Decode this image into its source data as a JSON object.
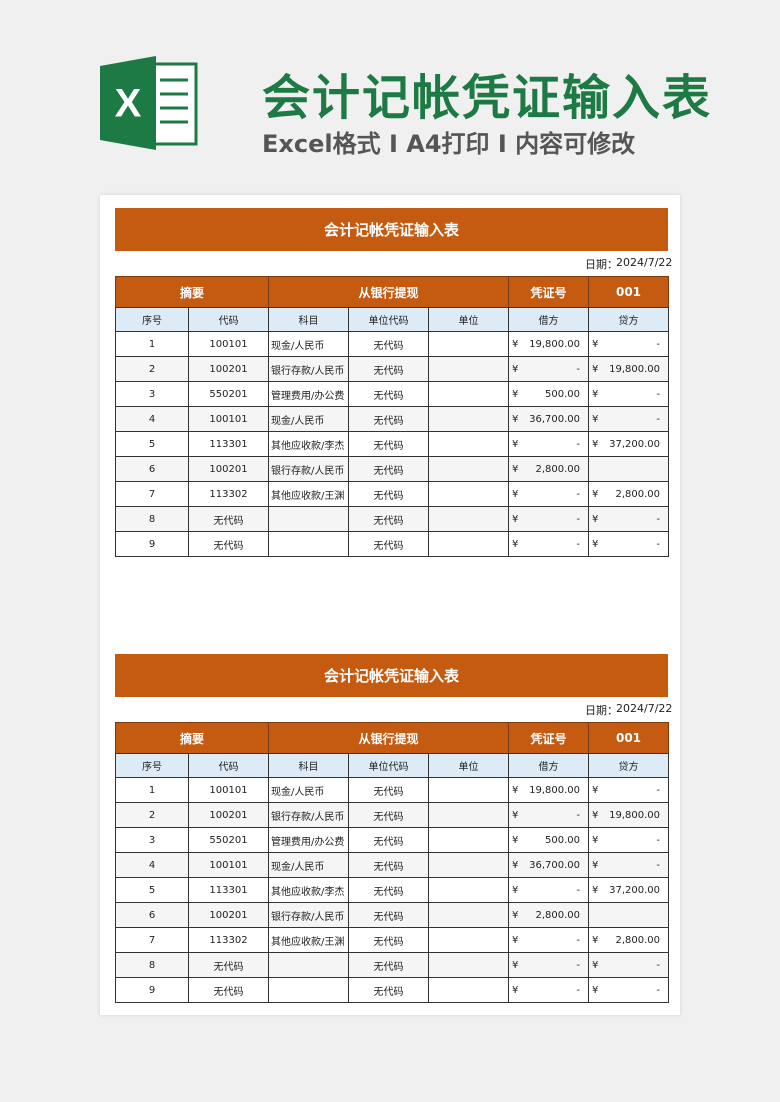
{
  "header": {
    "icon": "X",
    "title": "会计记帐凭证输入表",
    "subtitle": "Excel格式 I A4打印 I 内容可修改"
  },
  "sheets": [
    {
      "title": "会计记帐凭证输入表",
      "date_label": "日期：",
      "date": "2024/7/22",
      "top_row": [
        "摘要",
        "从银行提现",
        "凭证号",
        "001"
      ],
      "columns": [
        "序号",
        "代码",
        "科目",
        "单位代码",
        "单位",
        "借方",
        "贷方"
      ],
      "rows": [
        {
          "no": "1",
          "code": "100101",
          "subject": "现金/人民币",
          "unit_code": "无代码",
          "debit": [
            "¥",
            "19,800.00"
          ],
          "credit": [
            "¥",
            "-"
          ]
        },
        {
          "no": "2",
          "code": "100201",
          "subject": "银行存款/人民币",
          "unit_code": "无代码",
          "debit": [
            "¥",
            "-"
          ],
          "credit": [
            "¥",
            "19,800.00"
          ]
        },
        {
          "no": "3",
          "code": "550201",
          "subject": "管理费用/办公费",
          "unit_code": "无代码",
          "debit": [
            "¥",
            "500.00"
          ],
          "credit": [
            "¥",
            "-"
          ]
        },
        {
          "no": "4",
          "code": "100101",
          "subject": "现金/人民币",
          "unit_code": "无代码",
          "debit": [
            "¥",
            "36,700.00"
          ],
          "credit": [
            "¥",
            "-"
          ]
        },
        {
          "no": "5",
          "code": "113301",
          "subject": "其他应收款/李杰",
          "unit_code": "无代码",
          "debit": [
            "¥",
            "-"
          ],
          "credit": [
            "¥",
            "37,200.00"
          ]
        },
        {
          "no": "6",
          "code": "100201",
          "subject": "银行存款/人民币",
          "unit_code": "无代码",
          "debit": [
            "¥",
            "2,800.00"
          ]
        },
        {
          "no": "7",
          "code": "113302",
          "subject": "其他应收款/王渊",
          "unit_code": "无代码",
          "debit": [
            "¥",
            "-"
          ],
          "credit": [
            "¥",
            "2,800.00"
          ]
        },
        {
          "no": "8",
          "code": "无代码",
          "unit_code": "无代码",
          "debit": [
            "¥",
            "-"
          ],
          "credit": [
            "¥",
            "-"
          ]
        },
        {
          "no": "9",
          "code": "无代码",
          "unit_code": "无代码",
          "debit": [
            "¥",
            "-"
          ],
          "credit": [
            "¥",
            "-"
          ]
        }
      ]
    },
    {
      "title": "会计记帐凭证输入表",
      "date_label": "日期：",
      "date": "2024/7/22",
      "top_row": [
        "摘要",
        "从银行提现",
        "凭证号",
        "001"
      ],
      "columns": [
        "序号",
        "代码",
        "科目",
        "单位代码",
        "单位",
        "借方",
        "贷方"
      ],
      "rows": [
        {
          "no": "1",
          "code": "100101",
          "subject": "现金/人民币",
          "unit_code": "无代码",
          "debit": [
            "¥",
            "19,800.00"
          ],
          "credit": [
            "¥",
            "-"
          ]
        },
        {
          "no": "2",
          "code": "100201",
          "subject": "银行存款/人民币",
          "unit_code": "无代码",
          "debit": [
            "¥",
            "-"
          ],
          "credit": [
            "¥",
            "19,800.00"
          ]
        },
        {
          "no": "3",
          "code": "550201",
          "subject": "管理费用/办公费",
          "unit_code": "无代码",
          "debit": [
            "¥",
            "500.00"
          ],
          "credit": [
            "¥",
            "-"
          ]
        },
        {
          "no": "4",
          "code": "100101",
          "subject": "现金/人民币",
          "unit_code": "无代码",
          "debit": [
            "¥",
            "36,700.00"
          ],
          "credit": [
            "¥",
            "-"
          ]
        },
        {
          "no": "5",
          "code": "113301",
          "subject": "其他应收款/李杰",
          "unit_code": "无代码",
          "debit": [
            "¥",
            "-"
          ],
          "credit": [
            "¥",
            "37,200.00"
          ]
        },
        {
          "no": "6",
          "code": "100201",
          "subject": "银行存款/人民币",
          "unit_code": "无代码",
          "debit": [
            "¥",
            "2,800.00"
          ]
        },
        {
          "no": "7",
          "code": "113302",
          "subject": "其他应收款/王渊",
          "unit_code": "无代码",
          "debit": [
            "¥",
            "-"
          ],
          "credit": [
            "¥",
            "2,800.00"
          ]
        },
        {
          "no": "8",
          "code": "无代码",
          "unit_code": "无代码",
          "debit": [
            "¥",
            "-"
          ],
          "credit": [
            "¥",
            "-"
          ]
        },
        {
          "no": "9",
          "code": "无代码",
          "unit_code": "无代码",
          "debit": [
            "¥",
            "-"
          ],
          "credit": [
            "¥",
            "-"
          ]
        }
      ]
    }
  ]
}
